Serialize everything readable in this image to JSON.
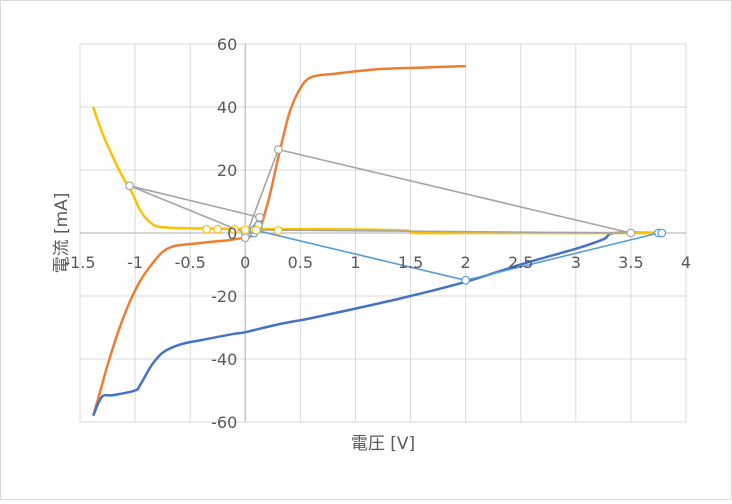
{
  "chart_data": {
    "type": "scatter",
    "title": "",
    "xlabel": "電圧 [V]",
    "ylabel": "電流 [mA]",
    "xlim": [
      -1.5,
      4
    ],
    "ylim": [
      -60,
      60
    ],
    "x_ticks": [
      -1.5,
      -1,
      -0.5,
      0,
      0.5,
      1,
      1.5,
      2,
      2.5,
      3,
      3.5,
      4
    ],
    "x_tick_labels": [
      "-1.5",
      "-1",
      "-0.5",
      "0",
      "0.5",
      "1",
      "1.5",
      "2",
      "2.5",
      "3",
      "3.5",
      "4"
    ],
    "y_ticks": [
      -60,
      -40,
      -20,
      0,
      20,
      40,
      60
    ],
    "y_tick_labels": [
      "-60",
      "-40",
      "-20",
      "0",
      "20",
      "40",
      "60"
    ],
    "grid": true,
    "legend": "none",
    "series": [
      {
        "color": "#ed7d31",
        "style": "smooth-line",
        "points": [
          [
            -1.38,
            -58
          ],
          [
            -1.33,
            -52
          ],
          [
            -1.25,
            -42
          ],
          [
            -1.15,
            -31
          ],
          [
            -1.05,
            -22
          ],
          [
            -0.95,
            -15
          ],
          [
            -0.85,
            -10
          ],
          [
            -0.75,
            -6
          ],
          [
            -0.65,
            -4.2
          ],
          [
            -0.5,
            -3.5
          ],
          [
            -0.3,
            -2.8
          ],
          [
            -0.1,
            -2
          ],
          [
            0.1,
            0
          ],
          [
            0.2,
            9
          ],
          [
            0.3,
            24
          ],
          [
            0.4,
            38
          ],
          [
            0.5,
            46
          ],
          [
            0.6,
            49.5
          ],
          [
            0.8,
            50.5
          ],
          [
            1.2,
            52
          ],
          [
            1.6,
            52.5
          ],
          [
            2.0,
            53
          ]
        ]
      },
      {
        "color": "#4472c4",
        "style": "smooth-line",
        "points": [
          [
            -1.38,
            -58
          ],
          [
            -1.3,
            -52
          ],
          [
            -1.2,
            -51.5
          ],
          [
            -1.0,
            -50
          ],
          [
            -0.95,
            -48
          ],
          [
            -0.85,
            -42
          ],
          [
            -0.75,
            -38
          ],
          [
            -0.6,
            -35.5
          ],
          [
            -0.4,
            -34
          ],
          [
            -0.1,
            -32
          ],
          [
            0.0,
            -31.5
          ],
          [
            0.3,
            -29
          ],
          [
            0.6,
            -27
          ],
          [
            1.0,
            -24
          ],
          [
            1.5,
            -20
          ],
          [
            2.0,
            -15.5
          ],
          [
            2.5,
            -10
          ],
          [
            3.0,
            -5
          ],
          [
            3.25,
            -2
          ],
          [
            3.35,
            0
          ],
          [
            3.75,
            0
          ]
        ]
      },
      {
        "color": "#ffc000",
        "style": "smooth-line",
        "points": [
          [
            -1.38,
            40
          ],
          [
            -1.3,
            32
          ],
          [
            -1.2,
            24
          ],
          [
            -1.1,
            17
          ],
          [
            -1.05,
            14.5
          ],
          [
            -0.95,
            7
          ],
          [
            -0.85,
            3
          ],
          [
            -0.75,
            1.8
          ],
          [
            -0.5,
            1.5
          ],
          [
            0.0,
            1.3
          ],
          [
            0.5,
            1.2
          ],
          [
            1.0,
            1.1
          ],
          [
            1.45,
            0.8
          ],
          [
            1.55,
            0
          ],
          [
            2.0,
            0
          ],
          [
            3.0,
            0
          ],
          [
            3.78,
            0
          ]
        ]
      },
      {
        "color": "#a5a5a5",
        "style": "line-markers",
        "points": [
          [
            0.0,
            0
          ],
          [
            -1.05,
            15
          ],
          [
            0.13,
            5
          ],
          [
            0.0,
            -1.5
          ],
          [
            0.3,
            26.5
          ],
          [
            3.5,
            0
          ],
          [
            0.08,
            1
          ]
        ]
      },
      {
        "color": "#5b9bd5",
        "style": "line-markers",
        "points": [
          [
            0.08,
            0
          ],
          [
            0.12,
            2.5
          ],
          [
            0.08,
            1
          ],
          [
            2.0,
            -15
          ],
          [
            3.75,
            0
          ],
          [
            3.78,
            0
          ]
        ]
      },
      {
        "color": "#ffc000",
        "style": "markers",
        "points": [
          [
            -0.35,
            1.2
          ],
          [
            -0.25,
            1.2
          ],
          [
            -0.1,
            1.1
          ],
          [
            0.0,
            1
          ],
          [
            0.1,
            0.9
          ],
          [
            0.3,
            0.8
          ]
        ]
      }
    ]
  }
}
